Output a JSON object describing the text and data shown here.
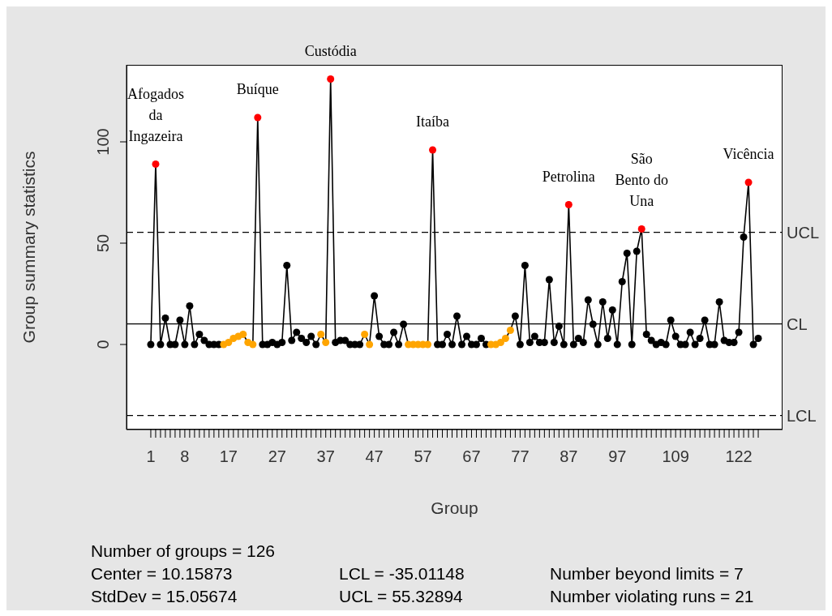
{
  "chart_data": {
    "type": "line",
    "xlabel": "Group",
    "ylabel": "Group summary statistics",
    "x": [
      1,
      2,
      3,
      4,
      5,
      6,
      7,
      8,
      9,
      10,
      11,
      12,
      13,
      14,
      15,
      16,
      17,
      18,
      19,
      20,
      21,
      22,
      23,
      24,
      25,
      26,
      27,
      28,
      29,
      30,
      31,
      32,
      33,
      34,
      35,
      36,
      37,
      38,
      39,
      40,
      41,
      42,
      43,
      44,
      45,
      46,
      47,
      48,
      49,
      50,
      51,
      52,
      53,
      54,
      55,
      56,
      57,
      58,
      59,
      60,
      61,
      62,
      63,
      64,
      65,
      66,
      67,
      68,
      69,
      70,
      71,
      72,
      73,
      74,
      75,
      76,
      77,
      78,
      79,
      80,
      81,
      82,
      83,
      84,
      85,
      86,
      87,
      88,
      89,
      90,
      91,
      92,
      93,
      94,
      95,
      96,
      97,
      98,
      99,
      100,
      101,
      102,
      103,
      104,
      105,
      106,
      107,
      108,
      109,
      110,
      111,
      112,
      113,
      114,
      115,
      116,
      117,
      118,
      119,
      120,
      121,
      122,
      123,
      124,
      125,
      126
    ],
    "values": [
      0,
      89,
      0,
      13,
      0,
      0,
      12,
      0,
      19,
      0,
      5,
      2,
      0,
      0,
      0,
      0,
      1,
      3,
      4,
      5,
      1,
      0,
      112,
      0,
      0,
      1,
      0,
      1,
      39,
      2,
      6,
      3,
      1,
      4,
      0,
      5,
      1,
      131,
      1,
      2,
      2,
      0,
      0,
      0,
      5,
      0,
      24,
      4,
      0,
      0,
      6,
      0,
      10,
      0,
      0,
      0,
      0,
      0,
      96,
      0,
      0,
      5,
      0,
      14,
      0,
      4,
      0,
      0,
      3,
      0,
      0,
      0,
      1,
      3,
      7,
      14,
      0,
      39,
      1,
      4,
      1,
      1,
      32,
      1,
      9,
      0,
      69,
      0,
      3,
      1,
      22,
      10,
      0,
      21,
      3,
      17,
      0,
      31,
      45,
      0,
      46,
      57,
      5,
      2,
      0,
      1,
      0,
      12,
      4,
      0,
      0,
      6,
      0,
      3,
      12,
      0,
      0,
      21,
      2,
      1,
      1,
      6,
      53,
      80,
      0,
      3
    ],
    "color": "#000000",
    "colors": [
      "#000000",
      "#ff0000",
      "#000000",
      "#000000",
      "#000000",
      "#000000",
      "#000000",
      "#000000",
      "#000000",
      "#000000",
      "#000000",
      "#000000",
      "#000000",
      "#000000",
      "#000000",
      "#ffa500",
      "#ffa500",
      "#ffa500",
      "#ffa500",
      "#ffa500",
      "#ffa500",
      "#ffa500",
      "#ff0000",
      "#000000",
      "#000000",
      "#000000",
      "#000000",
      "#000000",
      "#000000",
      "#000000",
      "#000000",
      "#000000",
      "#000000",
      "#000000",
      "#000000",
      "#ffa500",
      "#ffa500",
      "#ff0000",
      "#000000",
      "#000000",
      "#000000",
      "#000000",
      "#000000",
      "#000000",
      "#ffa500",
      "#ffa500",
      "#000000",
      "#000000",
      "#000000",
      "#000000",
      "#000000",
      "#000000",
      "#000000",
      "#ffa500",
      "#ffa500",
      "#ffa500",
      "#ffa500",
      "#ffa500",
      "#ff0000",
      "#000000",
      "#000000",
      "#000000",
      "#000000",
      "#000000",
      "#000000",
      "#000000",
      "#000000",
      "#000000",
      "#000000",
      "#000000",
      "#ffa500",
      "#ffa500",
      "#ffa500",
      "#ffa500",
      "#ffa500",
      "#000000",
      "#000000",
      "#000000",
      "#000000",
      "#000000",
      "#000000",
      "#000000",
      "#000000",
      "#000000",
      "#000000",
      "#000000",
      "#ff0000",
      "#000000",
      "#000000",
      "#000000",
      "#000000",
      "#000000",
      "#000000",
      "#000000",
      "#000000",
      "#000000",
      "#000000",
      "#000000",
      "#000000",
      "#000000",
      "#000000",
      "#ff0000",
      "#000000",
      "#000000",
      "#000000",
      "#000000",
      "#000000",
      "#000000",
      "#000000",
      "#000000",
      "#000000",
      "#000000",
      "#000000",
      "#000000",
      "#000000",
      "#000000",
      "#000000",
      "#000000",
      "#000000",
      "#000000",
      "#000000",
      "#000000",
      "#000000",
      "#ff0000",
      "#000000",
      "#000000"
    ],
    "marker": "circle",
    "line_style": "solid",
    "xlim": [
      -4,
      131
    ],
    "xticks": [
      1,
      {
        "value": 2,
        "label": null
      },
      {
        "value": 3,
        "label": null
      },
      {
        "value": 4,
        "label": null
      },
      {
        "value": 5,
        "label": null
      },
      {
        "value": 6,
        "label": null
      },
      {
        "value": 7,
        "label": null
      },
      8,
      {
        "value": 9,
        "label": null
      },
      {
        "value": 10,
        "label": null
      },
      {
        "value": 11,
        "label": null
      },
      {
        "value": 12,
        "label": null
      },
      {
        "value": 13,
        "label": null
      },
      {
        "value": 14,
        "label": null
      },
      {
        "value": 15,
        "label": null
      },
      {
        "value": 16,
        "label": null
      },
      17,
      {
        "value": 18,
        "label": null
      },
      {
        "value": 19,
        "label": null
      },
      {
        "value": 20,
        "label": null
      },
      {
        "value": 21,
        "label": null
      },
      {
        "value": 22,
        "label": null
      },
      {
        "value": 23,
        "label": null
      },
      {
        "value": 24,
        "label": null
      },
      {
        "value": 25,
        "label": null
      },
      {
        "value": 26,
        "label": null
      },
      27,
      {
        "value": 28,
        "label": null
      },
      {
        "value": 29,
        "label": null
      },
      {
        "value": 30,
        "label": null
      },
      {
        "value": 31,
        "label": null
      },
      {
        "value": 32,
        "label": null
      },
      {
        "value": 33,
        "label": null
      },
      {
        "value": 34,
        "label": null
      },
      {
        "value": 35,
        "label": null
      },
      {
        "value": 36,
        "label": null
      },
      37,
      {
        "value": 38,
        "label": null
      },
      {
        "value": 39,
        "label": null
      },
      {
        "value": 40,
        "label": null
      },
      {
        "value": 41,
        "label": null
      },
      {
        "value": 42,
        "label": null
      },
      {
        "value": 43,
        "label": null
      },
      {
        "value": 44,
        "label": null
      },
      {
        "value": 45,
        "label": null
      },
      {
        "value": 46,
        "label": null
      },
      47,
      {
        "value": 48,
        "label": null
      },
      {
        "value": 49,
        "label": null
      },
      {
        "value": 50,
        "label": null
      },
      {
        "value": 51,
        "label": null
      },
      {
        "value": 52,
        "label": null
      },
      {
        "value": 53,
        "label": null
      },
      {
        "value": 54,
        "label": null
      },
      {
        "value": 55,
        "label": null
      },
      {
        "value": 56,
        "label": null
      },
      57,
      {
        "value": 58,
        "label": null
      },
      {
        "value": 59,
        "label": null
      },
      {
        "value": 60,
        "label": null
      },
      {
        "value": 61,
        "label": null
      },
      {
        "value": 62,
        "label": null
      },
      {
        "value": 63,
        "label": null
      },
      {
        "value": 64,
        "label": null
      },
      {
        "value": 65,
        "label": null
      },
      {
        "value": 66,
        "label": null
      },
      67,
      {
        "value": 68,
        "label": null
      },
      {
        "value": 69,
        "label": null
      },
      {
        "value": 70,
        "label": null
      },
      {
        "value": 71,
        "label": null
      },
      {
        "value": 72,
        "label": null
      },
      {
        "value": 73,
        "label": null
      },
      {
        "value": 74,
        "label": null
      },
      {
        "value": 75,
        "label": null
      },
      {
        "value": 76,
        "label": null
      },
      77,
      {
        "value": 78,
        "label": null
      },
      {
        "value": 79,
        "label": null
      },
      {
        "value": 80,
        "label": null
      },
      {
        "value": 81,
        "label": null
      },
      {
        "value": 82,
        "label": null
      },
      {
        "value": 83,
        "label": null
      },
      {
        "value": 84,
        "label": null
      },
      {
        "value": 85,
        "label": null
      },
      {
        "value": 86,
        "label": null
      },
      87,
      {
        "value": 88,
        "label": null
      },
      {
        "value": 89,
        "label": null
      },
      {
        "value": 90,
        "label": null
      },
      {
        "value": 91,
        "label": null
      },
      {
        "value": 92,
        "label": null
      },
      {
        "value": 93,
        "label": null
      },
      {
        "value": 94,
        "label": null
      },
      {
        "value": 95,
        "label": null
      },
      {
        "value": 96,
        "label": null
      },
      97,
      {
        "value": 98,
        "label": null
      },
      {
        "value": 99,
        "label": null
      },
      {
        "value": 100,
        "label": null
      },
      {
        "value": 101,
        "label": null
      },
      {
        "value": 102,
        "label": null
      },
      {
        "value": 103,
        "label": null
      },
      {
        "value": 104,
        "label": null
      },
      {
        "value": 105,
        "label": null
      },
      {
        "value": 106,
        "label": null
      },
      {
        "value": 107,
        "label": null
      },
      {
        "value": 108,
        "label": null
      },
      109,
      {
        "value": 110,
        "label": null
      },
      {
        "value": 111,
        "label": null
      },
      {
        "value": 112,
        "label": null
      },
      {
        "value": 113,
        "label": null
      },
      {
        "value": 114,
        "label": null
      },
      {
        "value": 115,
        "label": null
      },
      {
        "value": 116,
        "label": null
      },
      {
        "value": 117,
        "label": null
      },
      {
        "value": 118,
        "label": null
      },
      {
        "value": 119,
        "label": null
      },
      {
        "value": 120,
        "label": null
      },
      {
        "value": 121,
        "label": null
      },
      122,
      {
        "value": 123,
        "label": null
      },
      {
        "value": 124,
        "label": null
      },
      {
        "value": 125,
        "label": null
      },
      {
        "value": 126,
        "label": null
      }
    ],
    "ylim": [
      -42,
      138
    ],
    "yticks": [
      0,
      50,
      100
    ],
    "ref_lines": [
      {
        "axis": "y",
        "value": 55.32894,
        "label": "UCL",
        "color": "#000000",
        "line_style": "dashed"
      },
      {
        "axis": "y",
        "value": 10.15873,
        "label": "CL",
        "color": "#000000",
        "line_style": "solid"
      },
      {
        "axis": "y",
        "value": -35.01148,
        "label": "LCL",
        "color": "#000000",
        "line_style": "dashed"
      }
    ],
    "annotations": [
      {
        "text": "Afogados da Ingazeira",
        "x": 2,
        "y": 89
      },
      {
        "text": "Buíque",
        "x": 23,
        "y": 112
      },
      {
        "text": "Custódia",
        "x": 38,
        "y": 131
      },
      {
        "text": "Itaíba",
        "x": 59,
        "y": 96
      },
      {
        "text": "Petrolina",
        "x": 87,
        "y": 69
      },
      {
        "text": "São Bento do Una",
        "x": 102,
        "y": 57
      },
      {
        "text": "Vicência",
        "x": 124,
        "y": 80
      },
      "Number of groups = 126",
      "Center = 10.15873",
      "LCL = -35.01148",
      "Number beyond limits = 7",
      "StdDev = 15.05674",
      "UCL = 55.32894",
      "Number violating runs = 21"
    ]
  }
}
